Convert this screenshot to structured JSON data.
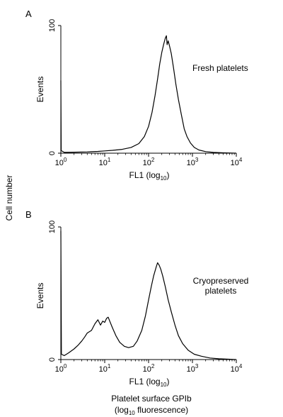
{
  "figure": {
    "shared_ylabel": "Cell number",
    "shared_xlabel_line1": "Platelet surface GPIb",
    "shared_xlabel_line2_pre": "(log",
    "shared_xlabel_line2_sub": "10",
    "shared_xlabel_line2_post": " fluorescence)"
  },
  "chart_data": [
    {
      "type": "line",
      "panel_label": "A",
      "annotation": "Fresh platelets",
      "ylabel": "Events",
      "xlabel_pre": "FL1 (log",
      "xlabel_sub": "10",
      "xlabel_post": ")",
      "xscale": "log",
      "xlim": [
        1,
        10000
      ],
      "ylim": [
        0,
        100
      ],
      "yticks": [
        0,
        100
      ],
      "xticks": [
        {
          "value": 1,
          "base": "10",
          "exp": "0"
        },
        {
          "value": 10,
          "base": "10",
          "exp": "1"
        },
        {
          "value": 100,
          "base": "10",
          "exp": "2"
        },
        {
          "value": 1000,
          "base": "10",
          "exp": "3"
        },
        {
          "value": 10000,
          "base": "10",
          "exp": "4"
        }
      ],
      "grid": false,
      "series": [
        {
          "color": "#000000",
          "points": [
            [
              1.0,
              57
            ],
            [
              1.02,
              2
            ],
            [
              1.2,
              0.6
            ],
            [
              2,
              0.8
            ],
            [
              4,
              1
            ],
            [
              7,
              1.4
            ],
            [
              10,
              1.8
            ],
            [
              15,
              2.2
            ],
            [
              25,
              3
            ],
            [
              40,
              4.5
            ],
            [
              60,
              7.5
            ],
            [
              80,
              13
            ],
            [
              100,
              21
            ],
            [
              120,
              32
            ],
            [
              140,
              45
            ],
            [
              160,
              58
            ],
            [
              180,
              70
            ],
            [
              200,
              79
            ],
            [
              220,
              85
            ],
            [
              240,
              90
            ],
            [
              255,
              92
            ],
            [
              265,
              85
            ],
            [
              280,
              88
            ],
            [
              300,
              84
            ],
            [
              330,
              78
            ],
            [
              370,
              67
            ],
            [
              420,
              54
            ],
            [
              480,
              42
            ],
            [
              560,
              30
            ],
            [
              650,
              19
            ],
            [
              750,
              13
            ],
            [
              900,
              8
            ],
            [
              1100,
              4.5
            ],
            [
              1400,
              2.5
            ],
            [
              2000,
              1.2
            ],
            [
              3000,
              0.6
            ],
            [
              5000,
              0.3
            ],
            [
              10000,
              0
            ]
          ]
        }
      ]
    },
    {
      "type": "line",
      "panel_label": "B",
      "annotation_line1": "Cryopreserved",
      "annotation_line2": "platelets",
      "ylabel": "Events",
      "xlabel_pre": "FL1 (log",
      "xlabel_sub": "10",
      "xlabel_post": ")",
      "xscale": "log",
      "xlim": [
        1,
        10000
      ],
      "ylim": [
        0,
        100
      ],
      "yticks": [
        0,
        100
      ],
      "xticks": [
        {
          "value": 1,
          "base": "10",
          "exp": "0"
        },
        {
          "value": 10,
          "base": "10",
          "exp": "1"
        },
        {
          "value": 100,
          "base": "10",
          "exp": "2"
        },
        {
          "value": 1000,
          "base": "10",
          "exp": "3"
        },
        {
          "value": 10000,
          "base": "10",
          "exp": "4"
        }
      ],
      "grid": false,
      "series": [
        {
          "color": "#000000",
          "points": [
            [
              1.0,
              97
            ],
            [
              1.03,
              4
            ],
            [
              1.2,
              3
            ],
            [
              1.5,
              5
            ],
            [
              2,
              8
            ],
            [
              2.5,
              11
            ],
            [
              3,
              14
            ],
            [
              3.5,
              17
            ],
            [
              4,
              20
            ],
            [
              5,
              22
            ],
            [
              6,
              27
            ],
            [
              7,
              30
            ],
            [
              8,
              26
            ],
            [
              9,
              29
            ],
            [
              10,
              28
            ],
            [
              11,
              31
            ],
            [
              12,
              32
            ],
            [
              13,
              29
            ],
            [
              15,
              24
            ],
            [
              18,
              18
            ],
            [
              22,
              13
            ],
            [
              28,
              10
            ],
            [
              35,
              9
            ],
            [
              45,
              10
            ],
            [
              55,
              14
            ],
            [
              70,
              22
            ],
            [
              85,
              33
            ],
            [
              100,
              45
            ],
            [
              115,
              55
            ],
            [
              130,
              63
            ],
            [
              150,
              70
            ],
            [
              160,
              73
            ],
            [
              175,
              71
            ],
            [
              190,
              68
            ],
            [
              210,
              63
            ],
            [
              240,
              55
            ],
            [
              280,
              45
            ],
            [
              330,
              36
            ],
            [
              400,
              26
            ],
            [
              480,
              18
            ],
            [
              600,
              12
            ],
            [
              800,
              7
            ],
            [
              1100,
              4
            ],
            [
              1600,
              2.5
            ],
            [
              2500,
              1.2
            ],
            [
              4000,
              0.6
            ],
            [
              10000,
              0
            ]
          ]
        }
      ]
    }
  ]
}
